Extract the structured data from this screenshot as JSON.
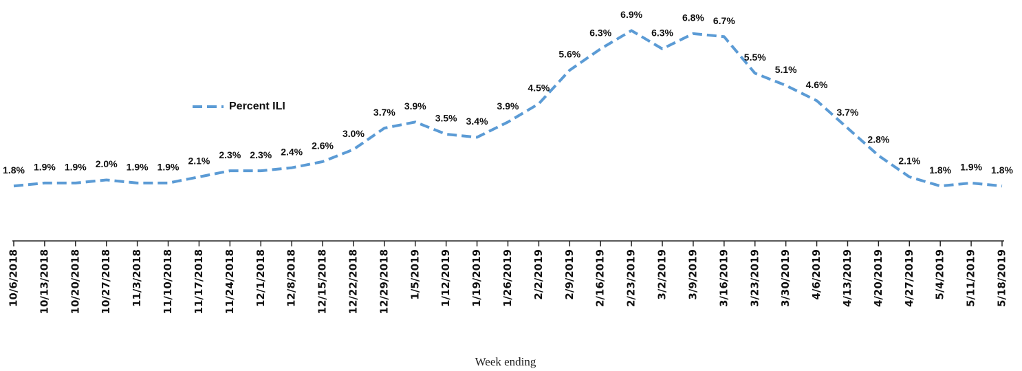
{
  "chart_data": {
    "type": "line",
    "x_label": "Week ending",
    "categories": [
      "10/6/2018",
      "10/13/2018",
      "10/20/2018",
      "10/27/2018",
      "11/3/2018",
      "11/10/2018",
      "11/17/2018",
      "11/24/2018",
      "12/1/2018",
      "12/8/2018",
      "12/15/2018",
      "12/22/2018",
      "12/29/2018",
      "1/5/2019",
      "1/12/2019",
      "1/19/2019",
      "1/26/2019",
      "2/2/2019",
      "2/9/2019",
      "2/16/2019",
      "2/23/2019",
      "3/2/2019",
      "3/9/2019",
      "3/16/2019",
      "3/23/2019",
      "3/30/2019",
      "4/6/2019",
      "4/13/2019",
      "4/20/2019",
      "4/27/2019",
      "5/4/2019",
      "5/11/2019",
      "5/18/2019"
    ],
    "series": [
      {
        "name": "Percent ILI",
        "color": "#5b9bd5",
        "values": [
          1.8,
          1.9,
          1.9,
          2.0,
          1.9,
          1.9,
          2.1,
          2.3,
          2.3,
          2.4,
          2.6,
          3.0,
          3.7,
          3.9,
          3.5,
          3.4,
          3.9,
          4.5,
          5.6,
          6.3,
          6.9,
          6.3,
          6.8,
          6.7,
          5.5,
          5.1,
          4.6,
          3.7,
          2.8,
          2.1,
          1.8,
          1.9,
          1.8
        ],
        "value_labels": [
          "1.8%",
          "1.9%",
          "1.9%",
          "2.0%",
          "1.9%",
          "1.9%",
          "2.1%",
          "2.3%",
          "2.3%",
          "2.4%",
          "2.6%",
          "3.0%",
          "3.7%",
          "3.9%",
          "3.5%",
          "3.4%",
          "3.9%",
          "4.5%",
          "5.6%",
          "6.3%",
          "6.9%",
          "6.3%",
          "6.8%",
          "6.7%",
          "5.5%",
          "5.1%",
          "4.6%",
          "3.7%",
          "2.8%",
          "2.1%",
          "1.8%",
          "1.9%",
          "1.8%"
        ]
      }
    ],
    "ylim": [
      0,
      7
    ],
    "legend": "upper left"
  }
}
